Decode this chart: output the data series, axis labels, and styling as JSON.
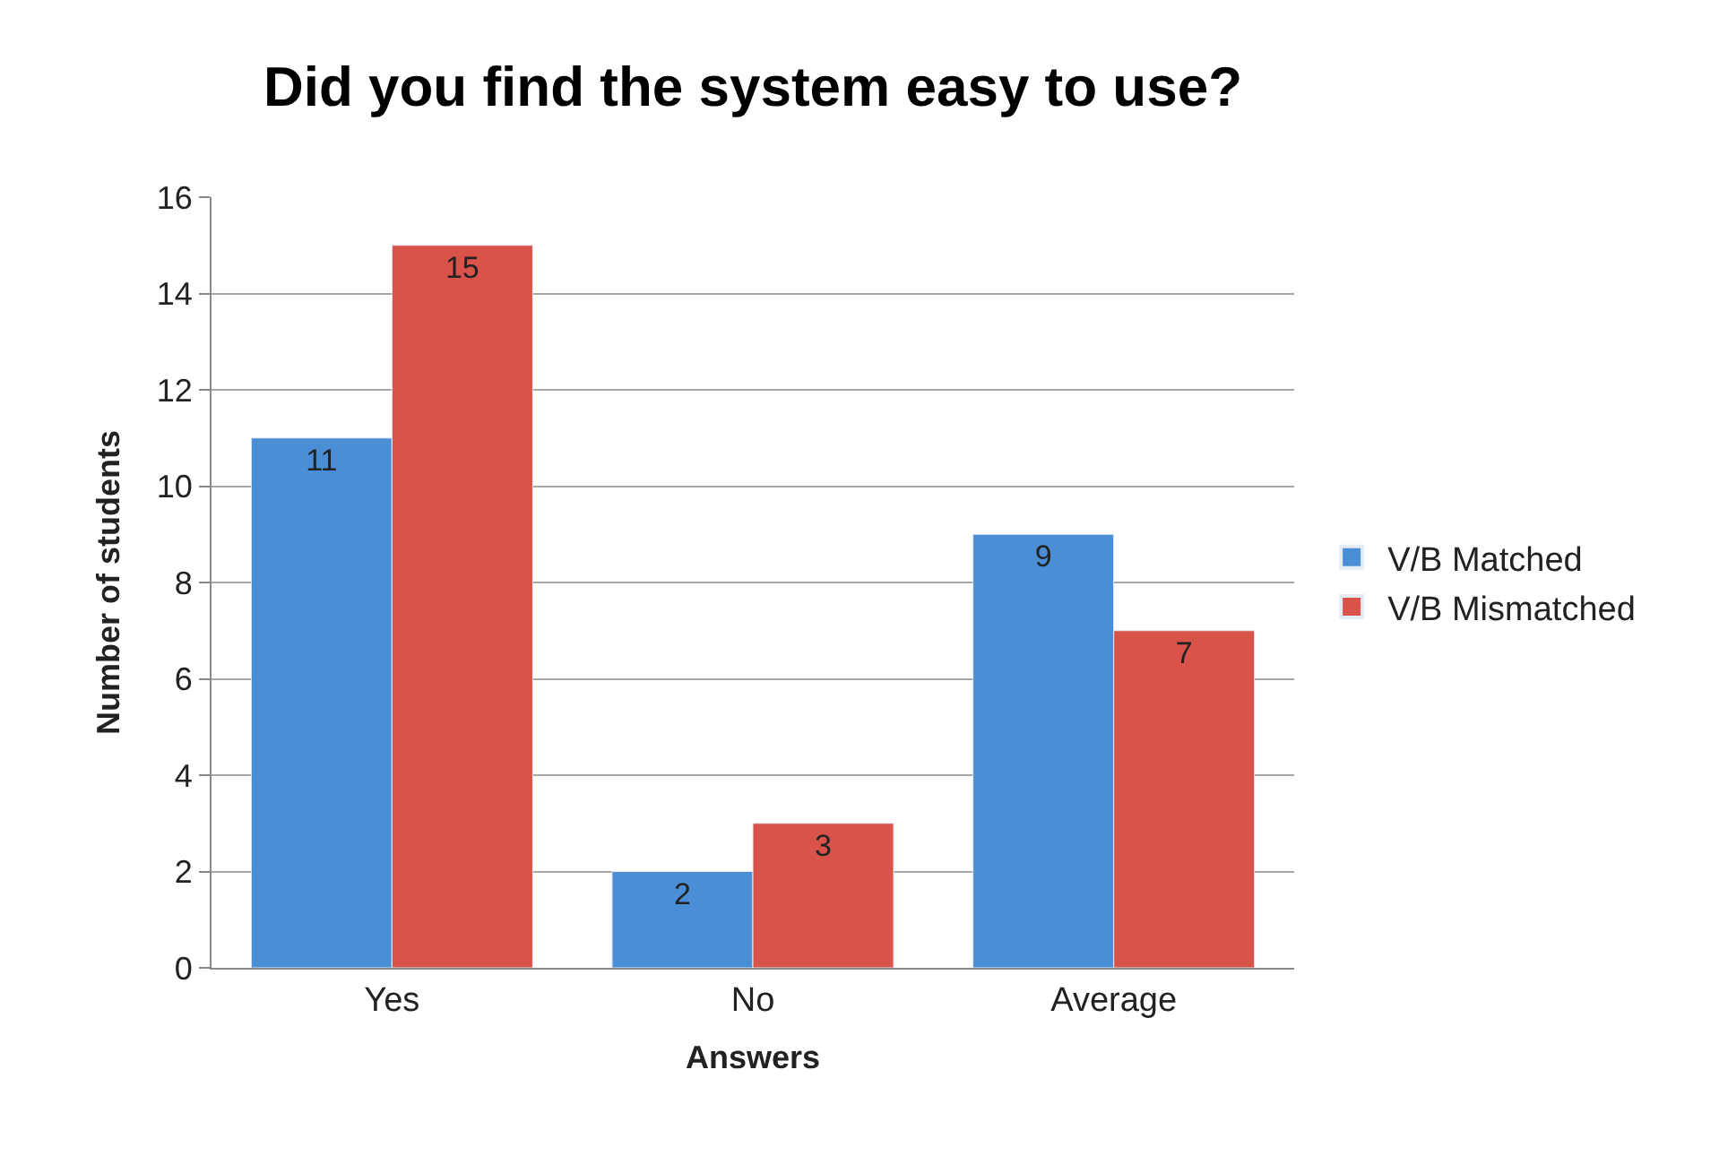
{
  "chart_data": {
    "type": "bar",
    "title": "Did you find the system easy to use?",
    "xlabel": "Answers",
    "ylabel": "Number of students",
    "categories": [
      "Yes",
      "No",
      "Average"
    ],
    "series": [
      {
        "name": "V/B Matched",
        "color": "#4a8fd6",
        "values": [
          11,
          2,
          9
        ]
      },
      {
        "name": "V/B Mismatched",
        "color": "#d9534a",
        "values": [
          15,
          3,
          7
        ]
      }
    ],
    "ylim": [
      0,
      16
    ],
    "yticks": [
      0,
      2,
      4,
      6,
      8,
      10,
      12,
      14,
      16
    ],
    "grid": "y",
    "legend": "right",
    "data_labels": true
  }
}
